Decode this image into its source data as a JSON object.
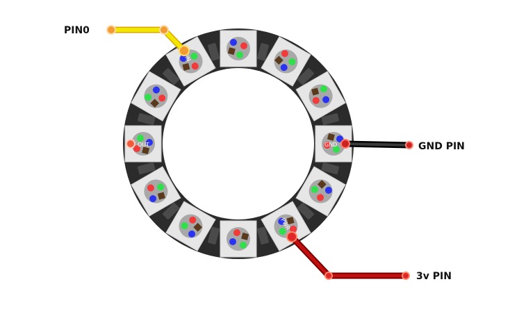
{
  "labels": {
    "pin0": "PIN0",
    "gnd_pin": "GND PIN",
    "v3_pin": "3v PIN",
    "board_in": "IN",
    "board_out": "OUT",
    "board_gnd": "GND",
    "board_pwr": "PWR"
  },
  "ring": {
    "led_count": 12,
    "board_color": "#2b2b2b",
    "inner_color": "#ffffff",
    "led_chip_color": "#e6e6e6",
    "led_disc_color": "#a8a8a8",
    "dot_colors": {
      "red": "#f23a3a",
      "green": "#2fe04a",
      "blue": "#2a33f2",
      "die": "#5a3a1c"
    }
  },
  "wires": {
    "pin0": {
      "color": "#f3e600",
      "shadow": "#d9a800",
      "pad": "#f29b33"
    },
    "gnd": {
      "color": "#1c1c1c",
      "pad": "#cc2222"
    },
    "v3": {
      "color": "#c21010",
      "pad": "#e02828"
    }
  }
}
